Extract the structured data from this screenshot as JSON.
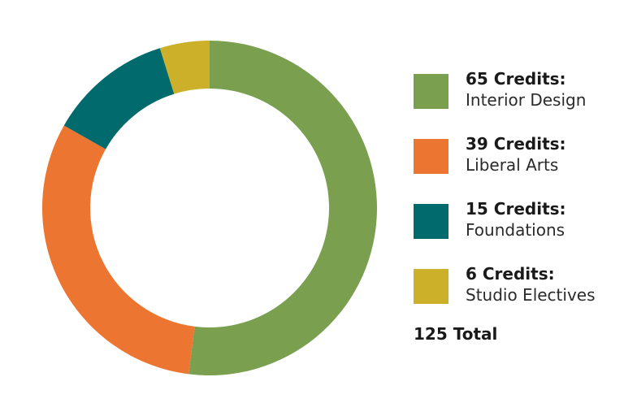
{
  "chart_data": {
    "type": "pie",
    "donut": true,
    "slices": [
      {
        "credits": "65 Credits:",
        "label": "Interior Design",
        "value": 65,
        "color": "#7a9f4e"
      },
      {
        "credits": "39 Credits:",
        "label": "Liberal Arts",
        "value": 39,
        "color": "#ec7631"
      },
      {
        "credits": "15 Credits:",
        "label": "Foundations",
        "value": 15,
        "color": "#006a6c"
      },
      {
        "credits": "6 Credits:",
        "label": "Studio Electives",
        "value": 6,
        "color": "#cdb02a"
      }
    ],
    "total_label": "125 Total",
    "total": 125,
    "legend_position": "right"
  }
}
